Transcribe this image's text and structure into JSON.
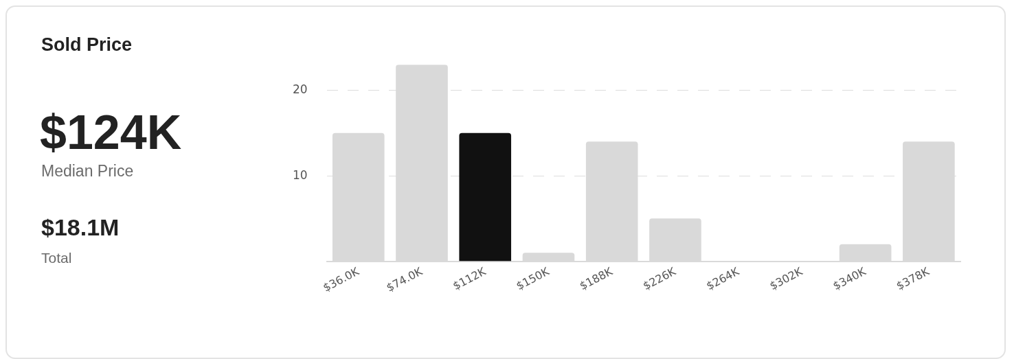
{
  "chart_data": {
    "type": "bar",
    "title": "Sold Price",
    "annotations": [
      "$124K",
      "Median Price",
      "$18.1M",
      "Total"
    ],
    "categories": [
      "$36.0K",
      "$74.0K",
      "$112K",
      "$150K",
      "$188K",
      "$226K",
      "$264K",
      "$302K",
      "$340K",
      "$378K"
    ],
    "values": [
      15,
      23,
      15,
      1,
      14,
      5,
      0,
      0,
      2,
      14
    ],
    "colors": [
      "#d9d9d9",
      "#d9d9d9",
      "#111111",
      "#d9d9d9",
      "#d9d9d9",
      "#d9d9d9",
      "#d9d9d9",
      "#d9d9d9",
      "#d9d9d9",
      "#d9d9d9"
    ],
    "ylim": [
      0,
      23
    ],
    "yticks": [
      10,
      20
    ],
    "grid": "y",
    "legend": false
  }
}
